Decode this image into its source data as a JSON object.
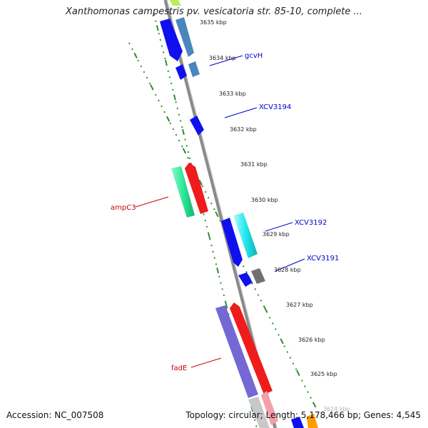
{
  "title": "Xanthomonas campestris pv. vesicatoria str. 85-10, complete ...",
  "accession": "Accession: NC_007508",
  "summary": "Topology: circular; Length: 5,178,466 bp; Genes: 4,545",
  "colors": {
    "backbone": "#8a8a8a",
    "tick": "#2f8f2f",
    "blue": "#1010ee",
    "steelblue": "#4a86be",
    "cyan": "#22e8ee",
    "aquamarine": "#2fe89a",
    "red": "#ee1c1c",
    "purple": "#7468d4",
    "gray": "#707070",
    "label_blue": "#0000cc",
    "label_red": "#cc0000"
  },
  "scale_labels": [
    "3635 kbp",
    "3634 kbp",
    "3633 kbp",
    "3632 kbp",
    "3631 kbp",
    "3630 kbp",
    "3629 kbp",
    "3628 kbp",
    "3627 kbp",
    "3626 kbp",
    "3625 kbp",
    "3624 kbp"
  ],
  "gene_labels": [
    {
      "name": "gcvH",
      "color": "blue"
    },
    {
      "name": "XCV3194",
      "color": "blue"
    },
    {
      "name": "XCV3192",
      "color": "blue"
    },
    {
      "name": "XCV3191",
      "color": "blue"
    },
    {
      "name": "ampC3",
      "color": "red"
    },
    {
      "name": "fadE",
      "color": "red"
    }
  ]
}
